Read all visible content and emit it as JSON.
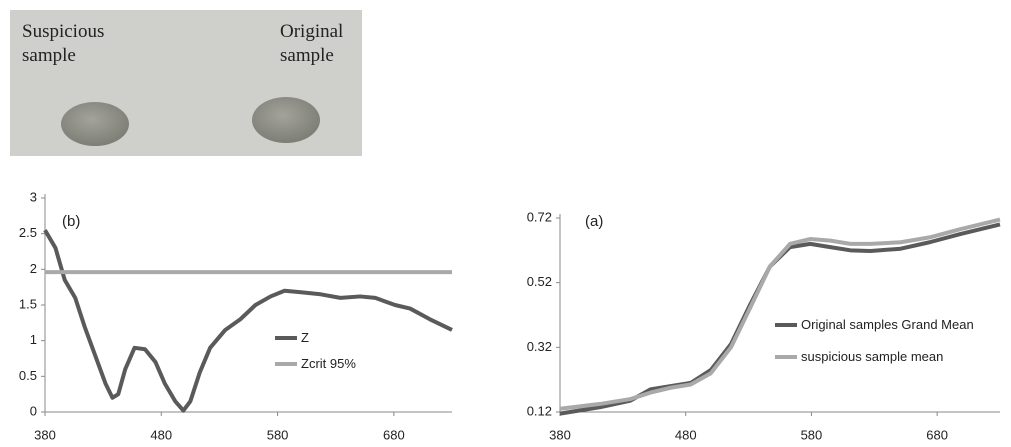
{
  "photo": {
    "labels": [
      "Suspicious sample",
      "Original sample"
    ]
  },
  "chart_data": [
    {
      "type": "line",
      "annotation": "(b)",
      "xlim": [
        380,
        730
      ],
      "xticks": [
        380,
        480,
        580,
        680
      ],
      "ylim": [
        0,
        3
      ],
      "yticks": [
        0,
        0.5,
        1,
        1.5,
        2,
        2.5,
        3
      ],
      "series": [
        {
          "name": "Z",
          "color": "#5a5a5a",
          "x": [
            380,
            389,
            397,
            406,
            414,
            423,
            432,
            438,
            443,
            449,
            457,
            466,
            475,
            483,
            492,
            499,
            505,
            513,
            522,
            535,
            548,
            561,
            574,
            586,
            599,
            617,
            634,
            651,
            664,
            681,
            694,
            711,
            730
          ],
          "values": [
            2.55,
            2.3,
            1.85,
            1.6,
            1.2,
            0.8,
            0.4,
            0.2,
            0.25,
            0.6,
            0.9,
            0.88,
            0.7,
            0.4,
            0.15,
            0.02,
            0.15,
            0.55,
            0.9,
            1.15,
            1.3,
            1.5,
            1.62,
            1.7,
            1.68,
            1.65,
            1.6,
            1.62,
            1.6,
            1.5,
            1.45,
            1.3,
            1.15
          ]
        },
        {
          "name": "Zcrit 95%",
          "color": "#a9a9a9",
          "x": [
            380,
            730
          ],
          "values": [
            1.96,
            1.96
          ]
        }
      ]
    },
    {
      "type": "line",
      "annotation": "(a)",
      "xlim": [
        380,
        730
      ],
      "xticks": [
        380,
        480,
        580,
        680
      ],
      "ylim": [
        0.12,
        0.72
      ],
      "yticks": [
        0.12,
        0.32,
        0.52,
        0.72
      ],
      "series": [
        {
          "name": "Original samples Grand Mean",
          "color": "#5a5a5a",
          "x": [
            380,
            412,
            436,
            452,
            468,
            484,
            500,
            516,
            531,
            547,
            563,
            579,
            595,
            611,
            627,
            651,
            674,
            698,
            730
          ],
          "values": [
            0.115,
            0.135,
            0.155,
            0.19,
            0.2,
            0.21,
            0.25,
            0.33,
            0.45,
            0.57,
            0.63,
            0.64,
            0.63,
            0.62,
            0.618,
            0.625,
            0.645,
            0.67,
            0.7
          ]
        },
        {
          "name": "suspicious sample mean",
          "color": "#a9a9a9",
          "x": [
            380,
            412,
            436,
            452,
            468,
            484,
            500,
            516,
            531,
            547,
            563,
            579,
            595,
            611,
            627,
            651,
            674,
            698,
            730
          ],
          "values": [
            0.13,
            0.145,
            0.16,
            0.18,
            0.195,
            0.205,
            0.24,
            0.32,
            0.44,
            0.57,
            0.64,
            0.655,
            0.65,
            0.64,
            0.64,
            0.645,
            0.66,
            0.685,
            0.715
          ]
        }
      ]
    }
  ]
}
